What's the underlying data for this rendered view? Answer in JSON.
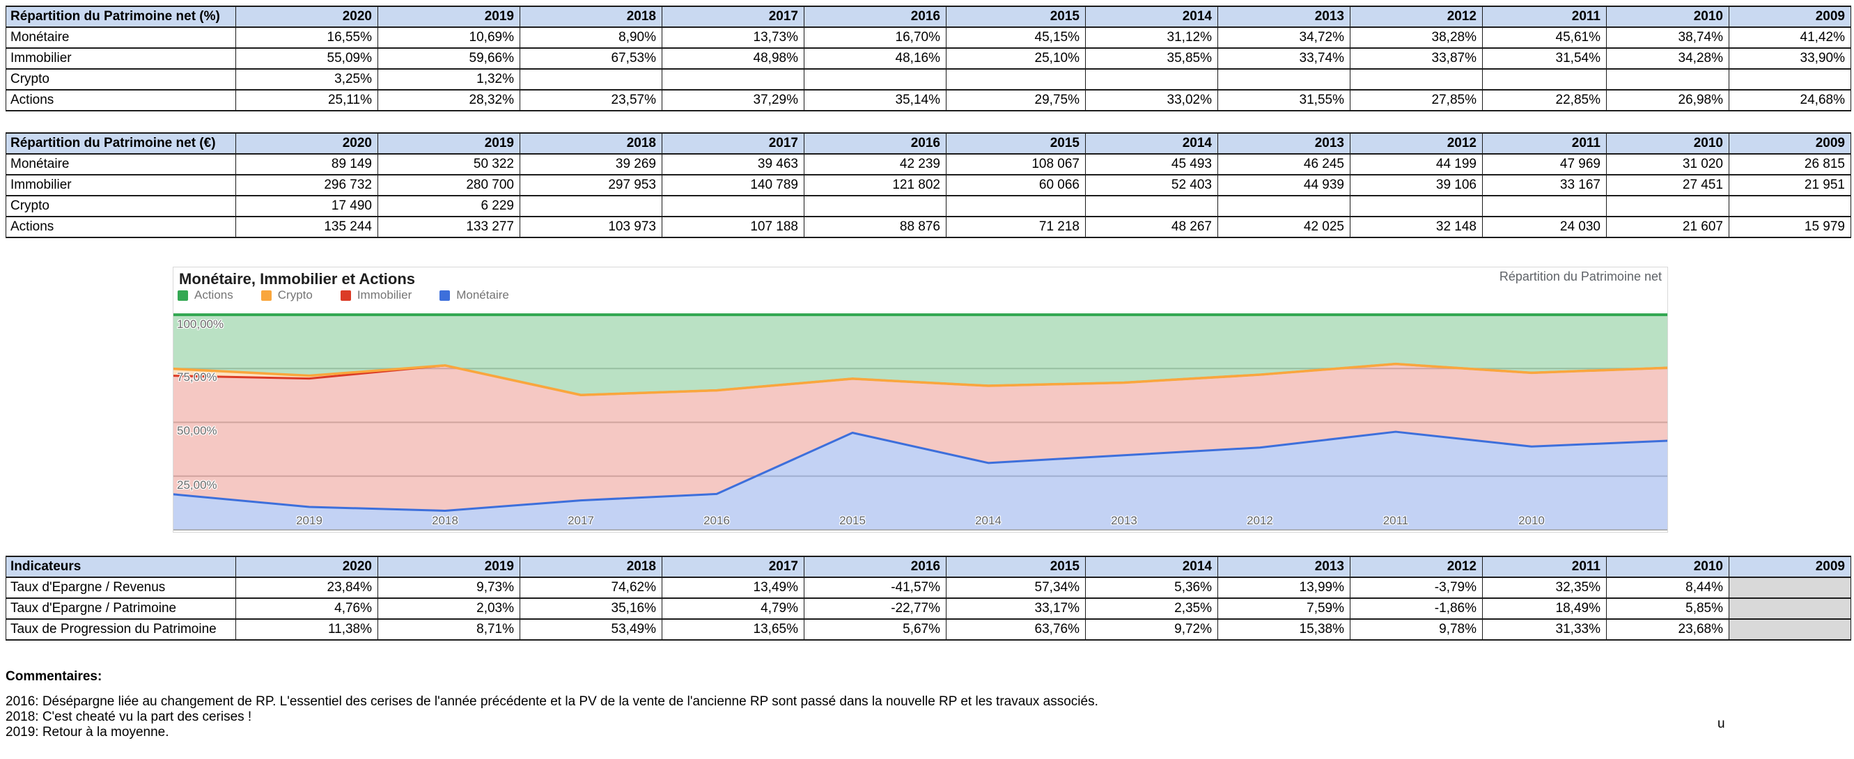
{
  "colors": {
    "table_header_bg": "#c9d9f1",
    "disabled_cell_bg": "#d9d9d9",
    "grid_border": "#1b1b1b",
    "chart_border": "#d9d9d9",
    "gridline": "#cccccc",
    "axis_line": "#9e9e9e",
    "axis_text": "#5f6368",
    "legend_text": "#757575"
  },
  "years": [
    "2020",
    "2019",
    "2018",
    "2017",
    "2016",
    "2015",
    "2014",
    "2013",
    "2012",
    "2011",
    "2010",
    "2009"
  ],
  "tables": {
    "percent": {
      "title": "Répartition du Patrimoine net (%)",
      "rows": [
        {
          "label": "Monétaire",
          "values": [
            "16,55%",
            "10,69%",
            "8,90%",
            "13,73%",
            "16,70%",
            "45,15%",
            "31,12%",
            "34,72%",
            "38,28%",
            "45,61%",
            "38,74%",
            "41,42%"
          ]
        },
        {
          "label": "Immobilier",
          "values": [
            "55,09%",
            "59,66%",
            "67,53%",
            "48,98%",
            "48,16%",
            "25,10%",
            "35,85%",
            "33,74%",
            "33,87%",
            "31,54%",
            "34,28%",
            "33,90%"
          ]
        },
        {
          "label": "Crypto",
          "values": [
            "3,25%",
            "1,32%",
            "",
            "",
            "",
            "",
            "",
            "",
            "",
            "",
            "",
            ""
          ]
        },
        {
          "label": "Actions",
          "values": [
            "25,11%",
            "28,32%",
            "23,57%",
            "37,29%",
            "35,14%",
            "29,75%",
            "33,02%",
            "31,55%",
            "27,85%",
            "22,85%",
            "26,98%",
            "24,68%"
          ]
        }
      ]
    },
    "euros": {
      "title": "Répartition du Patrimoine net (€)",
      "rows": [
        {
          "label": "Monétaire",
          "values": [
            "89 149",
            "50 322",
            "39 269",
            "39 463",
            "42 239",
            "108 067",
            "45 493",
            "46 245",
            "44 199",
            "47 969",
            "31 020",
            "26 815"
          ]
        },
        {
          "label": "Immobilier",
          "values": [
            "296 732",
            "280 700",
            "297 953",
            "140 789",
            "121 802",
            "60 066",
            "52 403",
            "44 939",
            "39 106",
            "33 167",
            "27 451",
            "21 951"
          ]
        },
        {
          "label": "Crypto",
          "values": [
            "17 490",
            "6 229",
            "",
            "",
            "",
            "",
            "",
            "",
            "",
            "",
            "",
            ""
          ]
        },
        {
          "label": "Actions",
          "values": [
            "135 244",
            "133 277",
            "103 973",
            "107 188",
            "88 876",
            "71 218",
            "48 267",
            "42 025",
            "32 148",
            "24 030",
            "21 607",
            "15 979"
          ]
        }
      ]
    },
    "indicators": {
      "title": "Indicateurs",
      "grayed_year": "2009",
      "rows": [
        {
          "label": "Taux d'Epargne / Revenus",
          "values": [
            "23,84%",
            "9,73%",
            "74,62%",
            "13,49%",
            "-41,57%",
            "57,34%",
            "5,36%",
            "13,99%",
            "-3,79%",
            "32,35%",
            "8,44%",
            ""
          ]
        },
        {
          "label": "Taux d'Epargne / Patrimoine",
          "values": [
            "4,76%",
            "2,03%",
            "35,16%",
            "4,79%",
            "-22,77%",
            "33,17%",
            "2,35%",
            "7,59%",
            "-1,86%",
            "18,49%",
            "5,85%",
            ""
          ]
        },
        {
          "label": "Taux de Progression du Patrimoine",
          "values": [
            "11,38%",
            "8,71%",
            "53,49%",
            "13,65%",
            "5,67%",
            "63,76%",
            "9,72%",
            "15,38%",
            "9,78%",
            "31,33%",
            "23,68%",
            ""
          ]
        }
      ]
    }
  },
  "chart": {
    "title": "Monétaire, Immobilier et Actions",
    "corner_label": "Répartition du Patrimoine net",
    "legend": [
      {
        "label": "Actions",
        "color": "#34a853"
      },
      {
        "label": "Crypto",
        "color": "#f9a63d"
      },
      {
        "label": "Immobilier",
        "color": "#db3b26"
      },
      {
        "label": "Monétaire",
        "color": "#3d6fdb"
      }
    ],
    "y_tick_labels": [
      "100,00%",
      "75,00%",
      "50,00%",
      "25,00%"
    ],
    "x_tick_labels": [
      "2019",
      "2018",
      "2017",
      "2016",
      "2015",
      "2014",
      "2013",
      "2012",
      "2011",
      "2010"
    ]
  },
  "chart_data": {
    "type": "area",
    "stacked": true,
    "normalized_percent": true,
    "title": "Monétaire, Immobilier et Actions",
    "x": [
      "2020",
      "2019",
      "2018",
      "2017",
      "2016",
      "2015",
      "2014",
      "2013",
      "2012",
      "2011",
      "2010",
      "2009"
    ],
    "series": [
      {
        "name": "Monétaire",
        "color": "#3d6fdb",
        "fill_alpha": 0.31,
        "values": [
          16.55,
          10.69,
          8.9,
          13.73,
          16.7,
          45.15,
          31.12,
          34.72,
          38.28,
          45.61,
          38.74,
          41.42
        ]
      },
      {
        "name": "Immobilier",
        "color": "#db3b26",
        "fill_alpha": 0.28,
        "values": [
          55.09,
          59.66,
          67.53,
          48.98,
          48.16,
          25.1,
          35.85,
          33.74,
          33.87,
          31.54,
          34.28,
          33.9
        ]
      },
      {
        "name": "Crypto",
        "color": "#f9a63d",
        "fill_alpha": 0.32,
        "values": [
          3.25,
          1.32,
          0,
          0,
          0,
          0,
          0,
          0,
          0,
          0,
          0,
          0
        ]
      },
      {
        "name": "Actions",
        "color": "#34a853",
        "fill_alpha": 0.34,
        "values": [
          25.11,
          28.32,
          23.57,
          37.29,
          35.14,
          29.75,
          33.02,
          31.55,
          27.85,
          22.85,
          26.98,
          24.68
        ]
      }
    ],
    "stack_order_bottom_to_top": [
      "Monétaire",
      "Immobilier",
      "Crypto",
      "Actions"
    ],
    "ylim": [
      0,
      100
    ],
    "y_ticks_percent": [
      25,
      50,
      75,
      100
    ],
    "grid": true,
    "legend_position": "top"
  },
  "comments": {
    "heading": "Commentaires:",
    "lines": [
      "2016: Désépargne liée au changement de RP. L'essentiel des cerises de l'année précédente et la PV de la vente de l'ancienne RP sont passé dans la nouvelle RP et les travaux associés.",
      "2018: C'est cheaté vu la part des cerises !",
      "2019: Retour à la moyenne."
    ],
    "stray_text": "u"
  }
}
